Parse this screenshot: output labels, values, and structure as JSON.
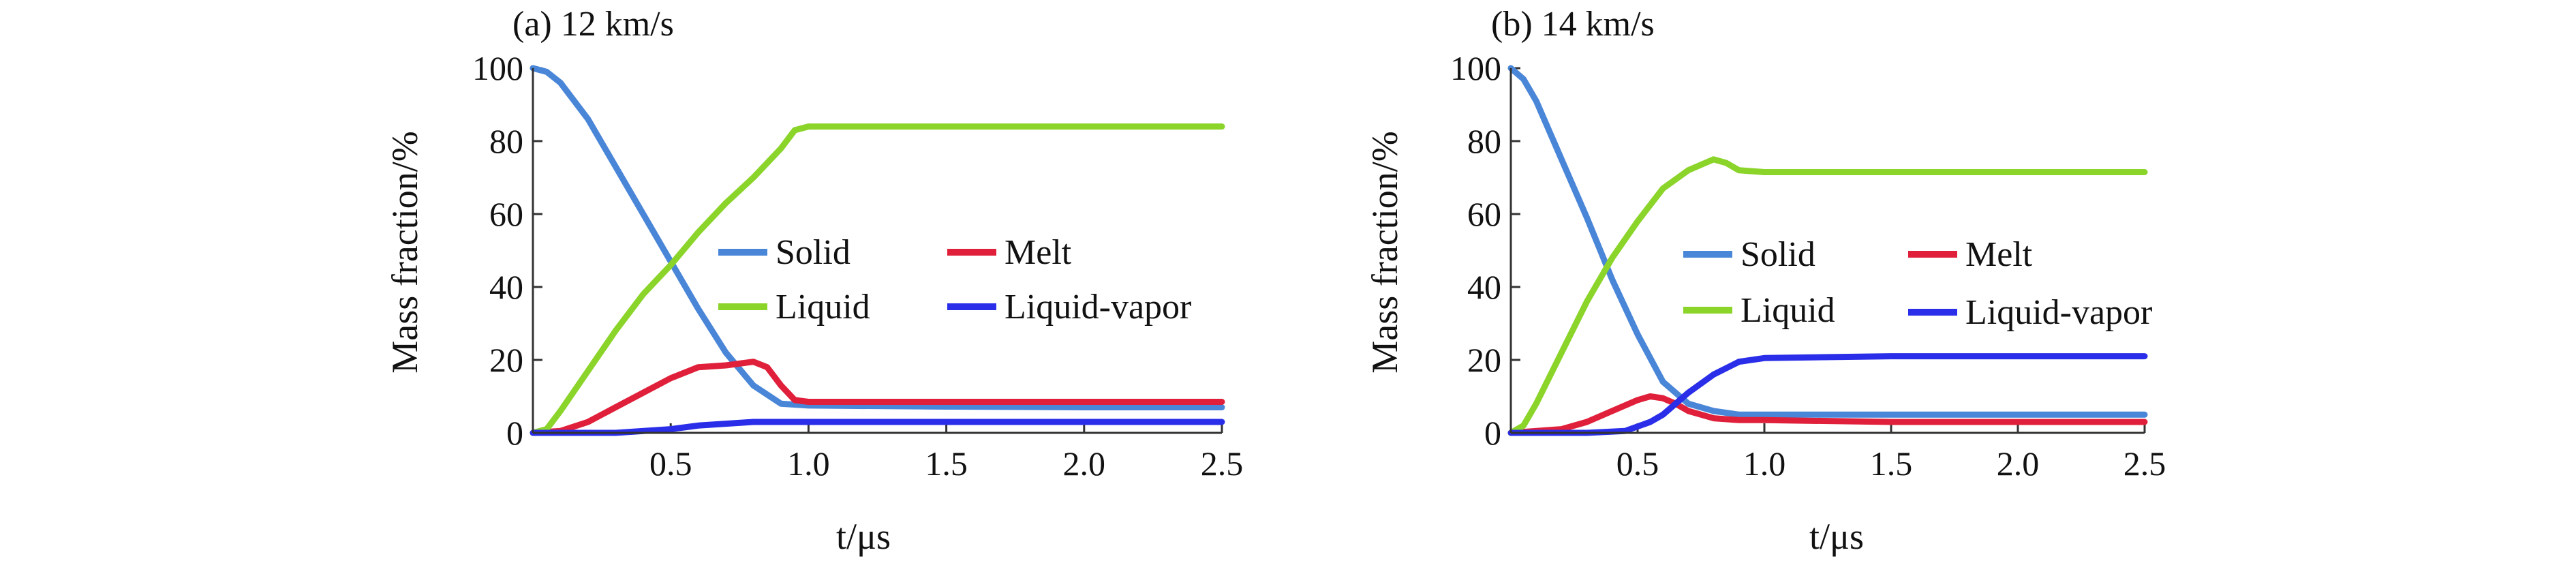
{
  "chart_data": [
    {
      "type": "line",
      "title": "(a) 12 km/s",
      "xlabel": "t/μs",
      "ylabel": "Mass fraction/%",
      "xlim": [
        0,
        2.5
      ],
      "ylim": [
        0,
        100
      ],
      "xticks": [
        0.5,
        1.0,
        1.5,
        2.0,
        2.5
      ],
      "xtick_labels": [
        "0.5",
        "1.0",
        "1.5",
        "2.0",
        "2.5"
      ],
      "yticks": [
        0,
        20,
        40,
        60,
        80,
        100
      ],
      "ytick_labels": [
        "0",
        "20",
        "40",
        "60",
        "80",
        "100"
      ],
      "legend": [
        "Solid",
        "Melt",
        "Liquid",
        "Liquid-vapor"
      ],
      "series": [
        {
          "name": "Solid",
          "color": "#4a86d8",
          "x": [
            0,
            0.05,
            0.1,
            0.2,
            0.3,
            0.4,
            0.5,
            0.6,
            0.7,
            0.8,
            0.9,
            1.0,
            1.5,
            2.0,
            2.5
          ],
          "y": [
            100,
            99,
            96,
            86,
            73,
            60,
            47,
            34,
            22,
            13,
            8,
            7.5,
            7.2,
            7,
            7
          ]
        },
        {
          "name": "Melt",
          "color": "#e0203a",
          "x": [
            0,
            0.1,
            0.2,
            0.3,
            0.4,
            0.5,
            0.6,
            0.7,
            0.75,
            0.8,
            0.85,
            0.9,
            0.95,
            1.0,
            1.5,
            2.0,
            2.5
          ],
          "y": [
            0,
            0.5,
            3,
            7,
            11,
            15,
            18,
            18.5,
            19,
            19.5,
            18,
            13,
            9,
            8.5,
            8.5,
            8.5,
            8.5
          ]
        },
        {
          "name": "Liquid",
          "color": "#8bd42a",
          "x": [
            0,
            0.05,
            0.1,
            0.2,
            0.3,
            0.4,
            0.5,
            0.6,
            0.7,
            0.8,
            0.9,
            0.95,
            1.0,
            1.5,
            2.0,
            2.5
          ],
          "y": [
            0,
            1,
            6,
            17,
            28,
            38,
            46,
            55,
            63,
            70,
            78,
            83,
            84,
            84,
            84,
            84
          ]
        },
        {
          "name": "Liquid-vapor",
          "color": "#2a2ee8",
          "x": [
            0,
            0.3,
            0.5,
            0.6,
            0.7,
            0.8,
            0.9,
            1.0,
            1.5,
            2.0,
            2.5
          ],
          "y": [
            0,
            0,
            1,
            2,
            2.5,
            3,
            3,
            3,
            3,
            3,
            3
          ]
        }
      ]
    },
    {
      "type": "line",
      "title": "(b) 14 km/s",
      "xlabel": "t/μs",
      "ylabel": "Mass fraction/%",
      "xlim": [
        0,
        2.5
      ],
      "ylim": [
        0,
        100
      ],
      "xticks": [
        0.5,
        1.0,
        1.5,
        2.0,
        2.5
      ],
      "xtick_labels": [
        "0.5",
        "1.0",
        "1.5",
        "2.0",
        "2.5"
      ],
      "yticks": [
        0,
        20,
        40,
        60,
        80,
        100
      ],
      "ytick_labels": [
        "0",
        "20",
        "40",
        "60",
        "80",
        "100"
      ],
      "legend": [
        "Solid",
        "Melt",
        "Liquid",
        "Liquid-vapor"
      ],
      "series": [
        {
          "name": "Solid",
          "color": "#4a86d8",
          "x": [
            0,
            0.05,
            0.1,
            0.2,
            0.3,
            0.4,
            0.5,
            0.6,
            0.7,
            0.8,
            0.9,
            1.0,
            1.5,
            2.0,
            2.5
          ],
          "y": [
            100,
            97,
            91,
            75,
            59,
            42,
            27,
            14,
            8,
            6,
            5,
            5,
            5,
            5,
            5
          ]
        },
        {
          "name": "Melt",
          "color": "#e0203a",
          "x": [
            0,
            0.2,
            0.3,
            0.4,
            0.5,
            0.55,
            0.6,
            0.65,
            0.7,
            0.8,
            0.9,
            1.0,
            1.5,
            2.0,
            2.5
          ],
          "y": [
            0,
            1,
            3,
            6,
            9,
            10,
            9.5,
            8,
            6,
            4,
            3.5,
            3.5,
            3,
            3,
            3
          ]
        },
        {
          "name": "Liquid",
          "color": "#8bd42a",
          "x": [
            0,
            0.05,
            0.1,
            0.2,
            0.3,
            0.4,
            0.5,
            0.6,
            0.7,
            0.8,
            0.85,
            0.9,
            1.0,
            1.5,
            2.0,
            2.5
          ],
          "y": [
            0,
            2,
            8,
            22,
            36,
            48,
            58,
            67,
            72,
            75,
            74,
            72,
            71.5,
            71.5,
            71.5,
            71.5
          ]
        },
        {
          "name": "Liquid-vapor",
          "color": "#2a2ee8",
          "x": [
            0,
            0.3,
            0.45,
            0.55,
            0.6,
            0.7,
            0.8,
            0.9,
            1.0,
            1.5,
            2.0,
            2.5
          ],
          "y": [
            0,
            0,
            0.5,
            3,
            5,
            11,
            16,
            19.5,
            20.5,
            21,
            21,
            21
          ]
        }
      ]
    }
  ]
}
